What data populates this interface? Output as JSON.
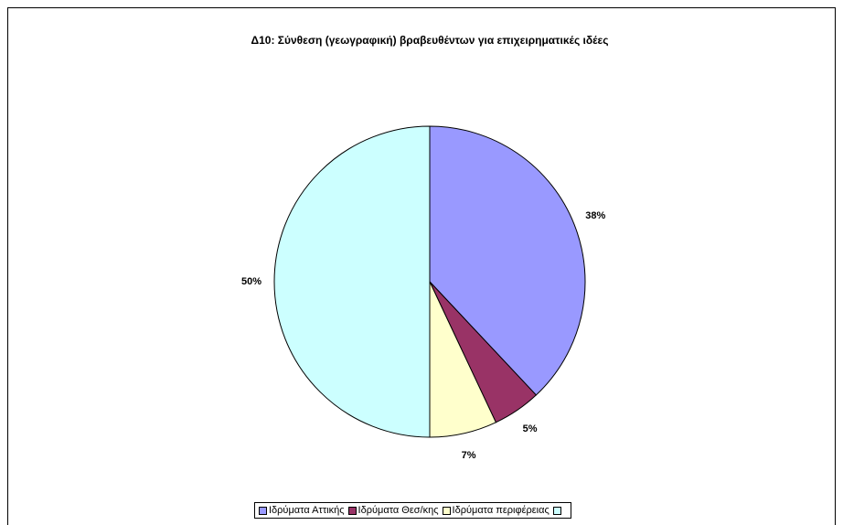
{
  "chart_data": {
    "type": "pie",
    "title": "Δ10: Σύνθεση (γεωγραφική) βραβευθέντων για επιχειρηματικές ιδέες",
    "categories": [
      "Ιδρύματα Αττικής",
      "Ιδρύματα Θεσ/κης",
      "Ιδρύματα περιφέρειας",
      null
    ],
    "values": [
      38,
      5,
      7,
      50
    ],
    "value_labels": [
      "38%",
      "5%",
      "7%",
      "50%"
    ],
    "colors": [
      "#9999ff",
      "#993366",
      "#ffffcc",
      "#ccffff"
    ],
    "legend": "bottom"
  }
}
